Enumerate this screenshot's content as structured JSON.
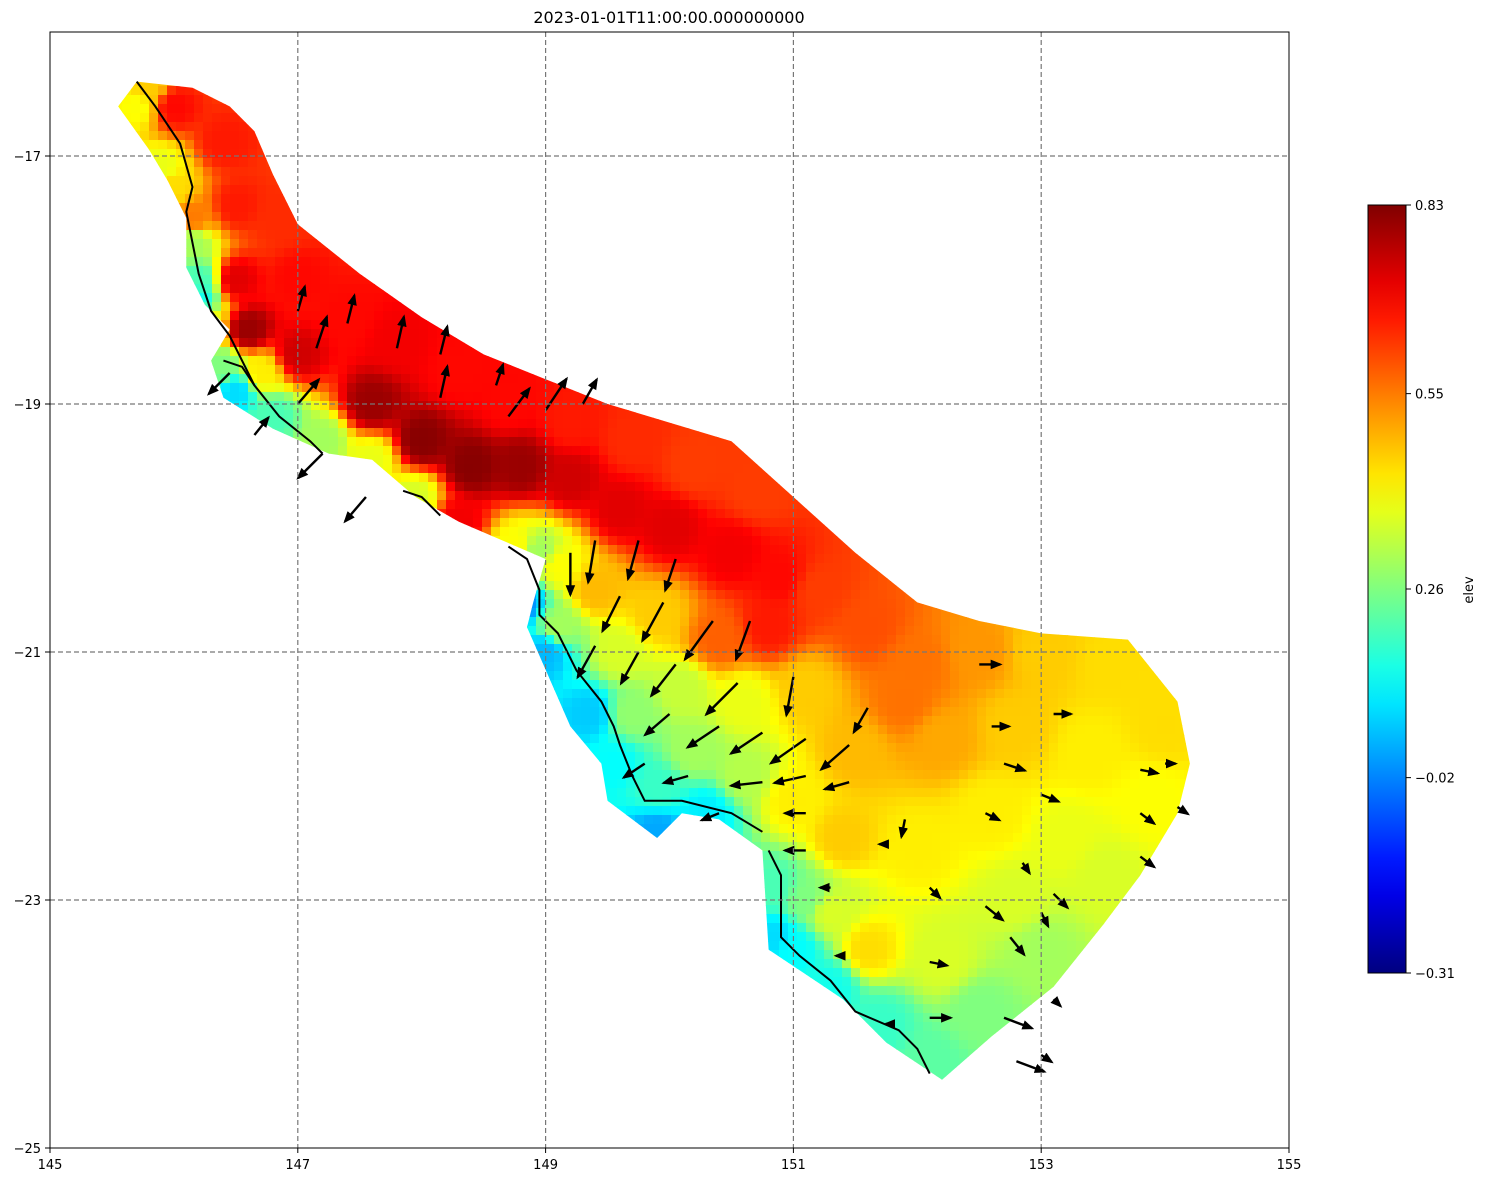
{
  "chart_data": {
    "type": "heatmap",
    "title": "2023-01-01T11:00:00.000000000",
    "xlabel": "",
    "ylabel": "",
    "xlim": [
      145,
      155
    ],
    "ylim": [
      -25,
      -16
    ],
    "xticks": [
      145,
      147,
      149,
      151,
      153,
      155
    ],
    "yticks": [
      -25,
      -23,
      -21,
      -19,
      -17
    ],
    "xtick_labels": [
      "145",
      "147",
      "149",
      "151",
      "153",
      "155"
    ],
    "ytick_labels": [
      "−25",
      "−23",
      "−21",
      "−19",
      "−17"
    ],
    "grid": true,
    "grid_style": "dashed",
    "colormap": "jet",
    "colorbar": {
      "label": "elev",
      "vmin": -0.31,
      "vmax": 0.83,
      "ticks": [
        0.83,
        0.55,
        0.26,
        -0.02,
        -0.31
      ],
      "tick_labels": [
        "0.83",
        "0.55",
        "0.26",
        "−0.02",
        "−0.31"
      ]
    },
    "domain_outline": [
      [
        145.7,
        -16.4
      ],
      [
        146.15,
        -16.45
      ],
      [
        146.45,
        -16.6
      ],
      [
        146.65,
        -16.8
      ],
      [
        146.8,
        -17.15
      ],
      [
        147.0,
        -17.55
      ],
      [
        147.5,
        -17.95
      ],
      [
        148.0,
        -18.3
      ],
      [
        148.5,
        -18.6
      ],
      [
        149.0,
        -18.8
      ],
      [
        149.5,
        -19.0
      ],
      [
        150.0,
        -19.15
      ],
      [
        150.5,
        -19.3
      ],
      [
        151.0,
        -19.75
      ],
      [
        151.5,
        -20.2
      ],
      [
        152.0,
        -20.6
      ],
      [
        152.5,
        -20.75
      ],
      [
        153.0,
        -20.85
      ],
      [
        153.7,
        -20.9
      ],
      [
        154.1,
        -21.4
      ],
      [
        154.2,
        -21.9
      ],
      [
        154.1,
        -22.3
      ],
      [
        153.8,
        -22.8
      ],
      [
        153.5,
        -23.2
      ],
      [
        153.1,
        -23.7
      ],
      [
        152.6,
        -24.1
      ],
      [
        152.2,
        -24.45
      ],
      [
        151.75,
        -24.15
      ],
      [
        151.4,
        -23.8
      ],
      [
        151.1,
        -23.6
      ],
      [
        150.8,
        -23.4
      ],
      [
        150.75,
        -22.6
      ],
      [
        150.4,
        -22.35
      ],
      [
        150.1,
        -22.3
      ],
      [
        149.9,
        -22.5
      ],
      [
        149.5,
        -22.2
      ],
      [
        149.45,
        -21.9
      ],
      [
        149.2,
        -21.6
      ],
      [
        148.85,
        -20.8
      ],
      [
        148.9,
        -20.6
      ],
      [
        149.0,
        -20.25
      ],
      [
        148.65,
        -20.1
      ],
      [
        148.3,
        -19.95
      ],
      [
        147.95,
        -19.75
      ],
      [
        147.6,
        -19.45
      ],
      [
        147.25,
        -19.4
      ],
      [
        146.8,
        -19.2
      ],
      [
        146.4,
        -18.95
      ],
      [
        146.3,
        -18.65
      ],
      [
        146.45,
        -18.4
      ],
      [
        146.25,
        -18.2
      ],
      [
        146.1,
        -17.9
      ],
      [
        146.1,
        -17.5
      ],
      [
        145.95,
        -17.2
      ],
      [
        145.8,
        -16.95
      ],
      [
        145.55,
        -16.6
      ]
    ],
    "coastline": [
      [
        145.7,
        -16.4
      ],
      [
        145.85,
        -16.6
      ],
      [
        146.05,
        -16.9
      ],
      [
        146.15,
        -17.25
      ],
      [
        146.1,
        -17.45
      ],
      [
        146.2,
        -17.95
      ],
      [
        146.3,
        -18.25
      ],
      [
        146.45,
        -18.45
      ],
      [
        146.65,
        -18.85
      ],
      [
        146.85,
        -19.1
      ],
      [
        147.1,
        -19.3
      ],
      [
        147.2,
        -19.4
      ]
    ],
    "coastline_2": [
      [
        146.4,
        -18.65
      ],
      [
        146.55,
        -18.7
      ],
      [
        146.65,
        -18.85
      ]
    ],
    "coastline_3": [
      [
        147.85,
        -19.7
      ],
      [
        148.0,
        -19.75
      ],
      [
        148.15,
        -19.9
      ]
    ],
    "coastline_4": [
      [
        148.7,
        -20.15
      ],
      [
        148.85,
        -20.25
      ],
      [
        148.95,
        -20.5
      ],
      [
        148.95,
        -20.7
      ],
      [
        149.1,
        -20.85
      ],
      [
        149.25,
        -21.15
      ],
      [
        149.45,
        -21.4
      ],
      [
        149.55,
        -21.6
      ],
      [
        149.6,
        -21.75
      ],
      [
        149.7,
        -22.0
      ],
      [
        149.8,
        -22.2
      ],
      [
        150.1,
        -22.2
      ],
      [
        150.5,
        -22.3
      ],
      [
        150.75,
        -22.45
      ]
    ],
    "coastline_5": [
      [
        150.8,
        -22.6
      ],
      [
        150.9,
        -22.8
      ],
      [
        150.9,
        -23.3
      ],
      [
        151.05,
        -23.45
      ],
      [
        151.3,
        -23.65
      ],
      [
        151.5,
        -23.9
      ],
      [
        151.85,
        -24.05
      ],
      [
        152.0,
        -24.2
      ],
      [
        152.1,
        -24.4
      ]
    ],
    "elevation_samples": [
      {
        "x": 146.0,
        "y": -16.6,
        "v": 0.68
      },
      {
        "x": 146.4,
        "y": -16.9,
        "v": 0.66
      },
      {
        "x": 145.7,
        "y": -16.6,
        "v": 0.4
      },
      {
        "x": 145.9,
        "y": -17.1,
        "v": 0.38
      },
      {
        "x": 146.15,
        "y": -17.5,
        "v": 0.55
      },
      {
        "x": 146.5,
        "y": -17.4,
        "v": 0.66
      },
      {
        "x": 146.85,
        "y": -17.5,
        "v": 0.64
      },
      {
        "x": 146.2,
        "y": -18.0,
        "v": 0.2
      },
      {
        "x": 146.25,
        "y": -18.35,
        "v": 0.4
      },
      {
        "x": 146.5,
        "y": -18.0,
        "v": 0.72
      },
      {
        "x": 146.6,
        "y": -18.4,
        "v": 0.8
      },
      {
        "x": 147.0,
        "y": -18.0,
        "v": 0.68
      },
      {
        "x": 147.4,
        "y": -18.3,
        "v": 0.68
      },
      {
        "x": 147.8,
        "y": -18.5,
        "v": 0.7
      },
      {
        "x": 148.3,
        "y": -18.75,
        "v": 0.68
      },
      {
        "x": 148.7,
        "y": -19.0,
        "v": 0.68
      },
      {
        "x": 149.2,
        "y": -19.15,
        "v": 0.66
      },
      {
        "x": 149.7,
        "y": -19.3,
        "v": 0.64
      },
      {
        "x": 150.2,
        "y": -19.5,
        "v": 0.62
      },
      {
        "x": 150.7,
        "y": -19.7,
        "v": 0.62
      },
      {
        "x": 147.0,
        "y": -18.6,
        "v": 0.74
      },
      {
        "x": 147.6,
        "y": -19.0,
        "v": 0.8
      },
      {
        "x": 148.0,
        "y": -19.3,
        "v": 0.82
      },
      {
        "x": 148.4,
        "y": -19.5,
        "v": 0.82
      },
      {
        "x": 148.8,
        "y": -19.5,
        "v": 0.8
      },
      {
        "x": 149.2,
        "y": -19.6,
        "v": 0.74
      },
      {
        "x": 149.6,
        "y": -19.85,
        "v": 0.72
      },
      {
        "x": 150.0,
        "y": -20.0,
        "v": 0.72
      },
      {
        "x": 150.5,
        "y": -20.2,
        "v": 0.7
      },
      {
        "x": 150.9,
        "y": -20.4,
        "v": 0.68
      },
      {
        "x": 151.2,
        "y": -20.5,
        "v": 0.62
      },
      {
        "x": 151.6,
        "y": -20.8,
        "v": 0.6
      },
      {
        "x": 152.0,
        "y": -21.1,
        "v": 0.56
      },
      {
        "x": 152.5,
        "y": -21.0,
        "v": 0.52
      },
      {
        "x": 153.0,
        "y": -21.0,
        "v": 0.46
      },
      {
        "x": 153.6,
        "y": -21.1,
        "v": 0.44
      },
      {
        "x": 154.0,
        "y": -21.6,
        "v": 0.44
      },
      {
        "x": 153.9,
        "y": -22.2,
        "v": 0.4
      },
      {
        "x": 153.5,
        "y": -22.8,
        "v": 0.36
      },
      {
        "x": 153.0,
        "y": -23.4,
        "v": 0.3
      },
      {
        "x": 152.5,
        "y": -23.9,
        "v": 0.26
      },
      {
        "x": 152.1,
        "y": -24.3,
        "v": 0.22
      },
      {
        "x": 151.7,
        "y": -24.0,
        "v": 0.18
      },
      {
        "x": 151.3,
        "y": -23.7,
        "v": 0.14
      },
      {
        "x": 151.0,
        "y": -23.4,
        "v": 0.12
      },
      {
        "x": 151.3,
        "y": -23.1,
        "v": 0.36
      },
      {
        "x": 151.6,
        "y": -23.4,
        "v": 0.44
      },
      {
        "x": 152.2,
        "y": -23.5,
        "v": 0.36
      },
      {
        "x": 152.8,
        "y": -23.0,
        "v": 0.36
      },
      {
        "x": 153.2,
        "y": -22.5,
        "v": 0.38
      },
      {
        "x": 152.6,
        "y": -22.3,
        "v": 0.42
      },
      {
        "x": 152.0,
        "y": -22.6,
        "v": 0.42
      },
      {
        "x": 151.4,
        "y": -22.5,
        "v": 0.46
      },
      {
        "x": 151.0,
        "y": -22.2,
        "v": 0.42
      },
      {
        "x": 151.5,
        "y": -21.8,
        "v": 0.48
      },
      {
        "x": 152.2,
        "y": -21.7,
        "v": 0.5
      },
      {
        "x": 152.8,
        "y": -21.6,
        "v": 0.46
      },
      {
        "x": 153.4,
        "y": -21.8,
        "v": 0.42
      },
      {
        "x": 151.9,
        "y": -21.4,
        "v": 0.56
      },
      {
        "x": 151.1,
        "y": -21.3,
        "v": 0.46
      },
      {
        "x": 150.6,
        "y": -21.4,
        "v": 0.38
      },
      {
        "x": 150.4,
        "y": -20.9,
        "v": 0.58
      },
      {
        "x": 150.8,
        "y": -20.8,
        "v": 0.66
      },
      {
        "x": 149.9,
        "y": -20.7,
        "v": 0.46
      },
      {
        "x": 149.4,
        "y": -20.5,
        "v": 0.48
      },
      {
        "x": 149.1,
        "y": -20.3,
        "v": 0.4
      },
      {
        "x": 149.1,
        "y": -20.8,
        "v": 0.3
      },
      {
        "x": 149.6,
        "y": -21.0,
        "v": 0.36
      },
      {
        "x": 150.1,
        "y": -21.3,
        "v": 0.34
      },
      {
        "x": 149.7,
        "y": -21.5,
        "v": 0.28
      },
      {
        "x": 150.2,
        "y": -21.8,
        "v": 0.3
      },
      {
        "x": 150.6,
        "y": -22.0,
        "v": 0.32
      },
      {
        "x": 149.9,
        "y": -22.1,
        "v": 0.18
      },
      {
        "x": 150.3,
        "y": -22.3,
        "v": 0.1
      },
      {
        "x": 149.9,
        "y": -22.45,
        "v": 0.02
      },
      {
        "x": 149.55,
        "y": -21.9,
        "v": 0.12
      },
      {
        "x": 149.35,
        "y": -21.5,
        "v": 0.06
      },
      {
        "x": 149.0,
        "y": -21.0,
        "v": 0.04
      },
      {
        "x": 148.8,
        "y": -20.6,
        "v": -0.01
      },
      {
        "x": 148.95,
        "y": -20.2,
        "v": 0.3
      },
      {
        "x": 148.75,
        "y": -20.15,
        "v": 0.4
      },
      {
        "x": 148.3,
        "y": -19.95,
        "v": 0.7
      },
      {
        "x": 147.95,
        "y": -19.75,
        "v": 0.36
      },
      {
        "x": 147.6,
        "y": -19.45,
        "v": 0.38
      },
      {
        "x": 147.2,
        "y": -19.3,
        "v": 0.3
      },
      {
        "x": 146.8,
        "y": -19.1,
        "v": 0.2
      },
      {
        "x": 146.5,
        "y": -18.9,
        "v": 0.08
      },
      {
        "x": 146.4,
        "y": -18.7,
        "v": 0.26
      },
      {
        "x": 146.7,
        "y": -18.75,
        "v": 0.42
      },
      {
        "x": 146.0,
        "y": -17.25,
        "v": 0.44
      },
      {
        "x": 145.8,
        "y": -16.45,
        "v": 0.46
      },
      {
        "x": 146.15,
        "y": -17.7,
        "v": 0.3
      },
      {
        "x": 146.2,
        "y": -18.15,
        "v": 0.14
      },
      {
        "x": 150.85,
        "y": -22.9,
        "v": 0.2
      },
      {
        "x": 150.85,
        "y": -23.3,
        "v": 0.08
      },
      {
        "x": 151.1,
        "y": -23.0,
        "v": 0.26
      }
    ],
    "arrows": [
      {
        "x": 146.45,
        "y": -18.75,
        "u": -0.3,
        "v": -0.3
      },
      {
        "x": 147.2,
        "y": -19.4,
        "u": -0.35,
        "v": -0.35
      },
      {
        "x": 147.55,
        "y": -19.75,
        "u": -0.3,
        "v": -0.35
      },
      {
        "x": 147.15,
        "y": -18.55,
        "u": 0.15,
        "v": 0.45
      },
      {
        "x": 147.4,
        "y": -18.35,
        "u": 0.1,
        "v": 0.4
      },
      {
        "x": 147.8,
        "y": -18.55,
        "u": 0.1,
        "v": 0.45
      },
      {
        "x": 148.15,
        "y": -18.6,
        "u": 0.1,
        "v": 0.4
      },
      {
        "x": 148.15,
        "y": -18.95,
        "u": 0.1,
        "v": 0.45
      },
      {
        "x": 148.6,
        "y": -18.85,
        "u": 0.1,
        "v": 0.3
      },
      {
        "x": 148.7,
        "y": -19.1,
        "u": 0.3,
        "v": 0.4
      },
      {
        "x": 149.0,
        "y": -19.05,
        "u": 0.3,
        "v": 0.45
      },
      {
        "x": 149.3,
        "y": -19.0,
        "u": 0.2,
        "v": 0.35
      },
      {
        "x": 147.0,
        "y": -19.0,
        "u": 0.3,
        "v": 0.35
      },
      {
        "x": 147.0,
        "y": -18.25,
        "u": 0.1,
        "v": 0.35
      },
      {
        "x": 146.65,
        "y": -19.25,
        "u": 0.2,
        "v": 0.25
      },
      {
        "x": 149.2,
        "y": -20.2,
        "u": 0.0,
        "v": -0.6
      },
      {
        "x": 149.4,
        "y": -20.1,
        "u": -0.1,
        "v": -0.6
      },
      {
        "x": 149.75,
        "y": -20.1,
        "u": -0.15,
        "v": -0.55
      },
      {
        "x": 150.05,
        "y": -20.25,
        "u": -0.15,
        "v": -0.45
      },
      {
        "x": 149.6,
        "y": -20.55,
        "u": -0.25,
        "v": -0.5
      },
      {
        "x": 149.95,
        "y": -20.6,
        "u": -0.3,
        "v": -0.55
      },
      {
        "x": 150.35,
        "y": -20.75,
        "u": -0.4,
        "v": -0.55
      },
      {
        "x": 150.65,
        "y": -20.75,
        "u": -0.2,
        "v": -0.55
      },
      {
        "x": 149.4,
        "y": -20.95,
        "u": -0.25,
        "v": -0.45
      },
      {
        "x": 149.75,
        "y": -21.0,
        "u": -0.25,
        "v": -0.45
      },
      {
        "x": 150.05,
        "y": -21.1,
        "u": -0.35,
        "v": -0.45
      },
      {
        "x": 150.55,
        "y": -21.25,
        "u": -0.45,
        "v": -0.45
      },
      {
        "x": 151.0,
        "y": -21.2,
        "u": -0.1,
        "v": -0.55
      },
      {
        "x": 150.0,
        "y": -21.5,
        "u": -0.35,
        "v": -0.3
      },
      {
        "x": 150.4,
        "y": -21.6,
        "u": -0.45,
        "v": -0.3
      },
      {
        "x": 150.75,
        "y": -21.65,
        "u": -0.45,
        "v": -0.3
      },
      {
        "x": 151.1,
        "y": -21.7,
        "u": -0.5,
        "v": -0.35
      },
      {
        "x": 151.45,
        "y": -21.75,
        "u": -0.4,
        "v": -0.35
      },
      {
        "x": 151.6,
        "y": -21.45,
        "u": -0.2,
        "v": -0.35
      },
      {
        "x": 149.8,
        "y": -21.9,
        "u": -0.3,
        "v": -0.2
      },
      {
        "x": 150.15,
        "y": -22.0,
        "u": -0.35,
        "v": -0.1
      },
      {
        "x": 150.75,
        "y": -22.05,
        "u": -0.45,
        "v": -0.05
      },
      {
        "x": 151.1,
        "y": -22.0,
        "u": -0.45,
        "v": -0.1
      },
      {
        "x": 151.45,
        "y": -22.05,
        "u": -0.35,
        "v": -0.1
      },
      {
        "x": 150.4,
        "y": -22.3,
        "u": -0.25,
        "v": -0.1
      },
      {
        "x": 151.1,
        "y": -22.3,
        "u": -0.3,
        "v": 0.0
      },
      {
        "x": 151.1,
        "y": -22.6,
        "u": -0.3,
        "v": 0.0
      },
      {
        "x": 152.5,
        "y": -21.1,
        "u": 0.3,
        "v": 0.0
      },
      {
        "x": 152.6,
        "y": -21.6,
        "u": 0.25,
        "v": 0.0
      },
      {
        "x": 153.1,
        "y": -21.5,
        "u": 0.25,
        "v": 0.0
      },
      {
        "x": 152.7,
        "y": -21.9,
        "u": 0.3,
        "v": -0.1
      },
      {
        "x": 152.55,
        "y": -22.3,
        "u": 0.2,
        "v": -0.1
      },
      {
        "x": 153.0,
        "y": -22.15,
        "u": 0.25,
        "v": -0.1
      },
      {
        "x": 153.8,
        "y": -21.95,
        "u": 0.25,
        "v": -0.05
      },
      {
        "x": 154.0,
        "y": -21.9,
        "u": 0.15,
        "v": 0.0
      },
      {
        "x": 153.8,
        "y": -22.3,
        "u": 0.2,
        "v": -0.15
      },
      {
        "x": 154.1,
        "y": -22.25,
        "u": 0.15,
        "v": -0.1
      },
      {
        "x": 153.8,
        "y": -22.65,
        "u": 0.2,
        "v": -0.15
      },
      {
        "x": 152.85,
        "y": -22.7,
        "u": 0.1,
        "v": -0.15
      },
      {
        "x": 153.0,
        "y": -23.1,
        "u": 0.1,
        "v": -0.2
      },
      {
        "x": 152.55,
        "y": -23.05,
        "u": 0.25,
        "v": -0.2
      },
      {
        "x": 152.75,
        "y": -23.3,
        "u": 0.2,
        "v": -0.25
      },
      {
        "x": 153.1,
        "y": -22.95,
        "u": 0.2,
        "v": -0.2
      },
      {
        "x": 152.1,
        "y": -22.9,
        "u": 0.15,
        "v": -0.15
      },
      {
        "x": 152.1,
        "y": -23.5,
        "u": 0.25,
        "v": -0.05
      },
      {
        "x": 152.1,
        "y": -23.95,
        "u": 0.3,
        "v": 0.0
      },
      {
        "x": 152.7,
        "y": -23.95,
        "u": 0.4,
        "v": -0.15
      },
      {
        "x": 152.8,
        "y": -24.3,
        "u": 0.4,
        "v": -0.15
      },
      {
        "x": 153.0,
        "y": -24.25,
        "u": 0.15,
        "v": -0.1
      },
      {
        "x": 153.1,
        "y": -23.8,
        "u": 0.1,
        "v": -0.1
      },
      {
        "x": 151.9,
        "y": -22.35,
        "u": -0.05,
        "v": -0.25
      },
      {
        "x": 151.75,
        "y": -22.55,
        "u": -0.1,
        "v": 0.0
      },
      {
        "x": 151.3,
        "y": -22.9,
        "u": -0.15,
        "v": 0.0
      },
      {
        "x": 151.4,
        "y": -23.45,
        "u": -0.1,
        "v": 0.0
      },
      {
        "x": 151.8,
        "y": -24.0,
        "u": -0.1,
        "v": 0.0
      }
    ]
  }
}
